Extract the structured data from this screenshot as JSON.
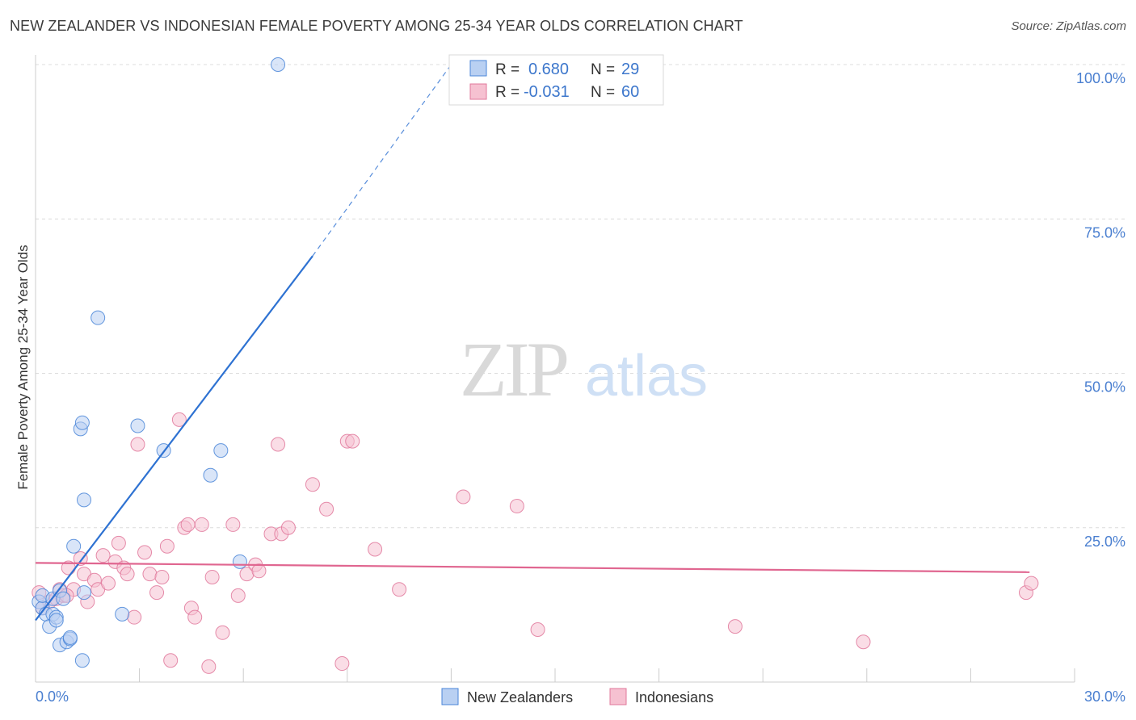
{
  "header": {
    "title": "NEW ZEALANDER VS INDONESIAN FEMALE POVERTY AMONG 25-34 YEAR OLDS CORRELATION CHART",
    "source": "Source: ZipAtlas.com"
  },
  "watermark": {
    "zip": "ZIP",
    "atlas": "atlas"
  },
  "colors": {
    "blue": "#4a86d8",
    "blue_fill": "#b9d0f2",
    "blue_line": "#2e72d2",
    "pink": "#e0789b",
    "pink_fill": "#f6c1d1",
    "pink_line": "#e06690",
    "tick_label": "#4a7fd0",
    "grid": "#dcdcdc"
  },
  "legend_box": {
    "rows": [
      {
        "r_label": "R =",
        "r_value": "0.680",
        "n_label": "N =",
        "n_value": "29",
        "series": "blue"
      },
      {
        "r_label": "R =",
        "r_value": "-0.031",
        "n_label": "N =",
        "n_value": "60",
        "series": "pink"
      }
    ]
  },
  "chart_data": {
    "type": "scatter",
    "title": "NEW ZEALANDER VS INDONESIAN FEMALE POVERTY AMONG 25-34 YEAR OLDS CORRELATION CHART",
    "xlabel": "",
    "ylabel": "Female Poverty Among 25-34 Year Olds",
    "xlim": [
      0,
      30
    ],
    "ylim": [
      0,
      100
    ],
    "x_tick_labels": [
      "0.0%",
      "30.0%"
    ],
    "y_ticks": [
      25,
      50,
      75,
      100
    ],
    "y_tick_labels": [
      "25.0%",
      "50.0%",
      "75.0%",
      "100.0%"
    ],
    "grid": true,
    "series": [
      {
        "name": "New Zealanders",
        "color": "blue",
        "r": 0.68,
        "n": 29,
        "trend": {
          "x0": 0.0,
          "y0": 10.0,
          "x1": 8.0,
          "y1": 69.0,
          "dash_to_x": 12.0,
          "dash_to_y": 100.0
        },
        "points": [
          [
            0.1,
            13.0
          ],
          [
            0.2,
            12.0
          ],
          [
            0.2,
            14.0
          ],
          [
            0.3,
            11.0
          ],
          [
            0.4,
            9.0
          ],
          [
            0.5,
            13.5
          ],
          [
            0.5,
            11.0
          ],
          [
            0.6,
            10.5
          ],
          [
            0.6,
            10.0
          ],
          [
            0.7,
            14.8
          ],
          [
            0.8,
            13.5
          ],
          [
            0.7,
            6.0
          ],
          [
            0.9,
            6.5
          ],
          [
            1.0,
            7.0
          ],
          [
            1.0,
            7.2
          ],
          [
            1.1,
            22.0
          ],
          [
            1.3,
            41.0
          ],
          [
            1.35,
            42.0
          ],
          [
            1.4,
            29.5
          ],
          [
            1.35,
            3.5
          ],
          [
            1.8,
            59.0
          ],
          [
            2.5,
            11.0
          ],
          [
            2.95,
            41.5
          ],
          [
            3.7,
            37.5
          ],
          [
            5.05,
            33.5
          ],
          [
            5.35,
            37.5
          ],
          [
            5.9,
            19.5
          ],
          [
            7.0,
            100.0
          ],
          [
            1.4,
            14.5
          ]
        ]
      },
      {
        "name": "Indonesians",
        "color": "pink",
        "r": -0.031,
        "n": 60,
        "trend": {
          "x0": 0.0,
          "y0": 19.3,
          "x1": 28.7,
          "y1": 17.8
        },
        "points": [
          [
            0.1,
            14.5
          ],
          [
            0.2,
            12.0
          ],
          [
            0.4,
            13.0
          ],
          [
            0.6,
            13.5
          ],
          [
            0.7,
            15.0
          ],
          [
            0.8,
            14.0
          ],
          [
            0.95,
            18.5
          ],
          [
            1.1,
            15.0
          ],
          [
            1.3,
            20.0
          ],
          [
            1.4,
            17.5
          ],
          [
            1.5,
            13.0
          ],
          [
            1.7,
            16.5
          ],
          [
            1.8,
            15.0
          ],
          [
            1.95,
            20.5
          ],
          [
            2.1,
            16.0
          ],
          [
            2.3,
            19.5
          ],
          [
            2.4,
            22.5
          ],
          [
            2.55,
            18.5
          ],
          [
            2.65,
            17.5
          ],
          [
            2.85,
            10.5
          ],
          [
            2.95,
            38.5
          ],
          [
            3.15,
            21.0
          ],
          [
            3.3,
            17.5
          ],
          [
            3.5,
            14.5
          ],
          [
            3.65,
            17.0
          ],
          [
            3.8,
            22.0
          ],
          [
            3.9,
            3.5
          ],
          [
            4.15,
            42.5
          ],
          [
            4.3,
            25.0
          ],
          [
            4.4,
            25.5
          ],
          [
            4.5,
            12.0
          ],
          [
            4.6,
            10.5
          ],
          [
            4.8,
            25.5
          ],
          [
            5.0,
            2.5
          ],
          [
            5.1,
            17.0
          ],
          [
            5.4,
            8.0
          ],
          [
            5.7,
            25.5
          ],
          [
            5.85,
            14.0
          ],
          [
            6.1,
            17.5
          ],
          [
            6.35,
            19.0
          ],
          [
            6.45,
            18.0
          ],
          [
            6.8,
            24.0
          ],
          [
            7.0,
            38.5
          ],
          [
            7.1,
            24.0
          ],
          [
            7.3,
            25.0
          ],
          [
            8.0,
            32.0
          ],
          [
            8.4,
            28.0
          ],
          [
            8.85,
            3.0
          ],
          [
            9.0,
            39.0
          ],
          [
            9.15,
            39.0
          ],
          [
            9.8,
            21.5
          ],
          [
            10.5,
            15.0
          ],
          [
            12.35,
            30.0
          ],
          [
            13.9,
            28.5
          ],
          [
            14.5,
            8.5
          ],
          [
            20.2,
            9.0
          ],
          [
            23.9,
            6.5
          ],
          [
            28.6,
            14.5
          ],
          [
            28.75,
            16.0
          ],
          [
            0.9,
            14.0
          ]
        ]
      }
    ],
    "legend": {
      "placement": "bottom-center",
      "entries": [
        "New Zealanders",
        "Indonesians"
      ]
    }
  }
}
